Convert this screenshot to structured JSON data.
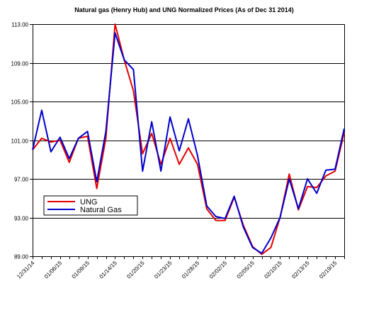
{
  "chart_data": {
    "type": "line",
    "title": "Natural gas  (Henry Hub) and UNG Normalized Prices  (As of Dec 31 2014)",
    "xlabel": "",
    "ylabel": "",
    "ylim": [
      89.0,
      113.0
    ],
    "y_ticks": [
      "89.00",
      "93.00",
      "97.00",
      "101.00",
      "105.00",
      "109.00",
      "113.00"
    ],
    "y_tick_values": [
      89,
      93,
      97,
      101,
      105,
      109,
      113
    ],
    "x_tick_labels": [
      "12/31/14",
      "01/06/15",
      "01/09/15",
      "01/14/15",
      "01/20/15",
      "01/23/15",
      "01/28/15",
      "02/02/15",
      "02/05/15",
      "02/10/15",
      "02/13/15",
      "02/19/15"
    ],
    "x_tick_indices": [
      0,
      3,
      6,
      9,
      12,
      15,
      18,
      21,
      24,
      27,
      30,
      33
    ],
    "grid": "horizontal",
    "legend_position": "left",
    "colors": {
      "UNG": "#e60000",
      "Natural Gas": "#0000cc"
    },
    "series": [
      {
        "name": "UNG",
        "values": [
          100.0,
          101.2,
          100.8,
          101.0,
          98.7,
          101.2,
          101.4,
          96.0,
          101.2,
          113.0,
          109.3,
          106.1,
          99.6,
          101.7,
          98.5,
          101.2,
          98.5,
          100.2,
          98.5,
          93.9,
          92.7,
          92.7,
          95.1,
          92.2,
          90.0,
          89.2,
          89.9,
          93.0,
          97.5,
          93.8,
          96.2,
          96.1,
          97.3,
          97.8,
          101.8
        ]
      },
      {
        "name": "Natural Gas",
        "values": [
          100.0,
          104.1,
          99.8,
          101.3,
          99.1,
          101.2,
          101.9,
          96.7,
          101.9,
          112.1,
          109.3,
          108.3,
          97.8,
          102.9,
          97.8,
          103.4,
          99.9,
          103.2,
          99.4,
          94.2,
          93.1,
          92.9,
          95.2,
          92.0,
          89.9,
          89.3,
          90.9,
          93.0,
          97.0,
          93.9,
          97.0,
          95.5,
          97.9,
          98.0,
          102.2
        ]
      }
    ]
  }
}
